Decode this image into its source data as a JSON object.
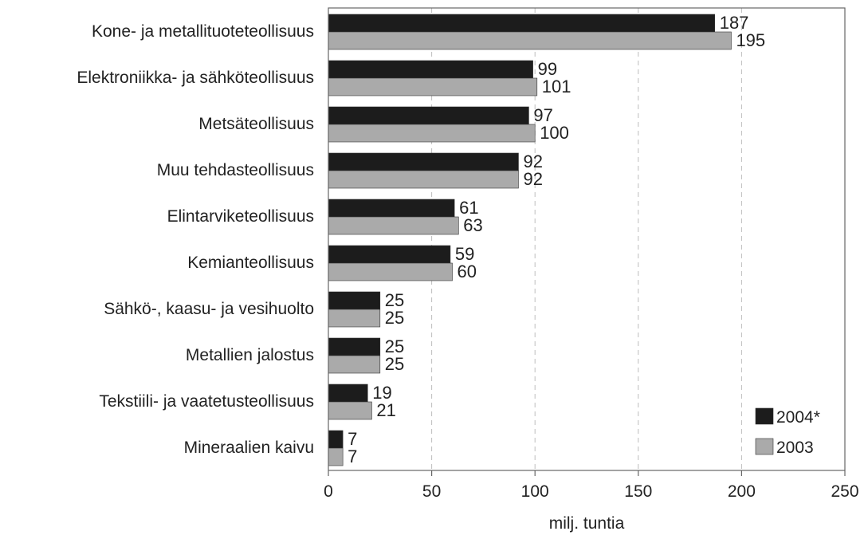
{
  "chart_data": {
    "type": "bar",
    "orientation": "horizontal",
    "categories": [
      "Kone- ja metallituoteteollisuus",
      "Elektroniikka- ja sähköteollisuus",
      "Metsäteollisuus",
      "Muu tehdasteollisuus",
      "Elintarviketeollisuus",
      "Kemianteollisuus",
      "Sähkö-, kaasu- ja vesihuolto",
      "Metallien jalostus",
      "Tekstiili- ja vaatetusteollisuus",
      "Mineraalien kaivu"
    ],
    "series": [
      {
        "name": "2004*",
        "color": "#1c1c1c",
        "values": [
          187,
          99,
          97,
          92,
          61,
          59,
          25,
          25,
          19,
          7
        ]
      },
      {
        "name": "2003",
        "color": "#aaaaaa",
        "values": [
          195,
          101,
          100,
          92,
          63,
          60,
          25,
          25,
          21,
          7
        ]
      }
    ],
    "xlabel": "milj. tuntia",
    "xlim": [
      0,
      250
    ],
    "xticks": [
      0,
      50,
      100,
      150,
      200,
      250
    ],
    "grid": "vertical dashed",
    "legend_position": "bottom-right"
  }
}
